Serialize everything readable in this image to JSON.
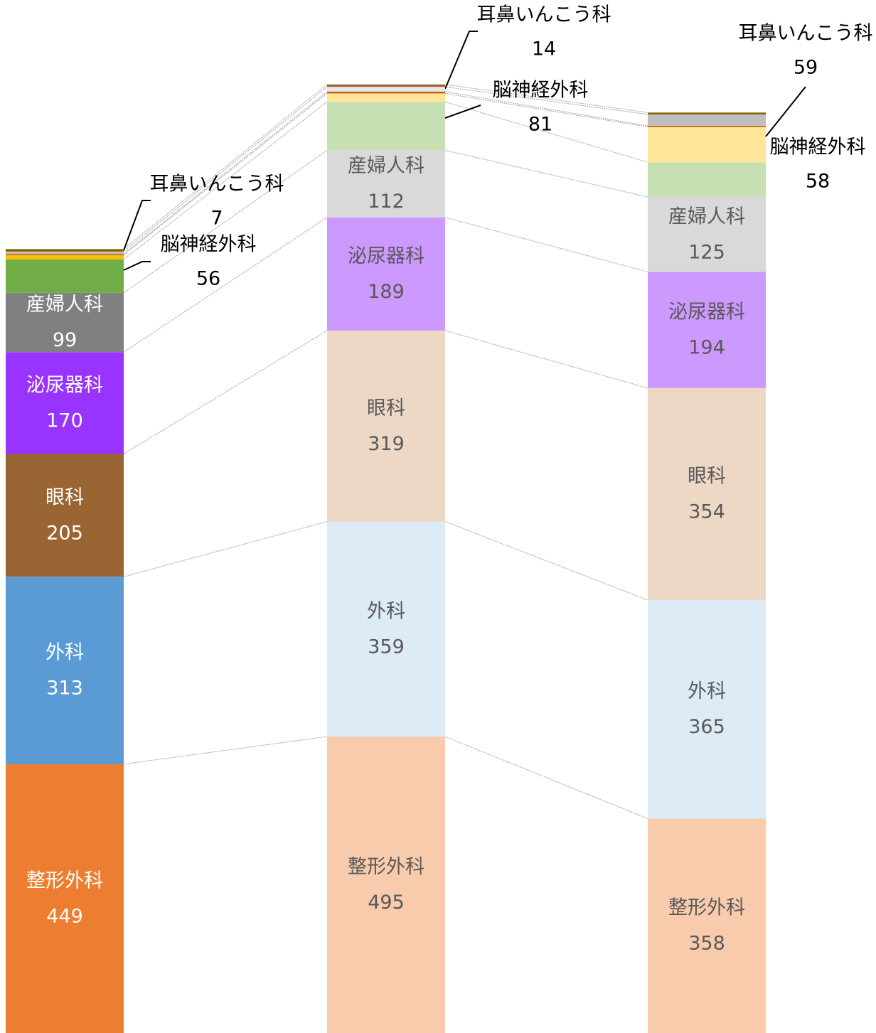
{
  "chart_data": {
    "type": "bar",
    "stacked": true,
    "ylim": [
      0,
      1725
    ],
    "series": [
      {
        "name": "整形外科",
        "colors": [
          "#ed7d31",
          "#f8cbad",
          "#f8cbad"
        ],
        "values": [
          449,
          495,
          358
        ]
      },
      {
        "name": "外科",
        "colors": [
          "#5b9bd5",
          "#ddebf7",
          "#ddebf7"
        ],
        "values": [
          313,
          359,
          365
        ]
      },
      {
        "name": "眼科",
        "colors": [
          "#996633",
          "#ecd8c5",
          "#ecd8c5"
        ],
        "values": [
          205,
          319,
          354
        ]
      },
      {
        "name": "泌尿器科",
        "colors": [
          "#9933ff",
          "#cc99ff",
          "#cc99ff"
        ],
        "values": [
          170,
          189,
          194
        ]
      },
      {
        "name": "産婦人科",
        "colors": [
          "#808080",
          "#d9d9d9",
          "#d9d9d9"
        ],
        "values": [
          99,
          112,
          125
        ]
      },
      {
        "name": "脳神経外科",
        "colors": [
          "#70ad47",
          "#c6e0b4",
          "#c6e0b4"
        ],
        "values": [
          56,
          81,
          58
        ]
      },
      {
        "name": "耳鼻いんこう科",
        "colors": [
          "#ffc000",
          "#ffe699",
          "#ffe699"
        ],
        "values": [
          7,
          14,
          59
        ]
      },
      {
        "colors": [
          "#c55a11",
          "#c55a11",
          "#c55a11"
        ],
        "values": [
          2,
          3,
          2
        ]
      },
      {
        "colors": [
          "#bfbfbf",
          "#e7e6e6",
          "#bfbfbf"
        ],
        "values": [
          4,
          8,
          19
        ]
      },
      {
        "colors": [
          "#806000",
          "#996633",
          "#806000"
        ],
        "values": [
          4,
          4,
          3
        ]
      }
    ]
  }
}
